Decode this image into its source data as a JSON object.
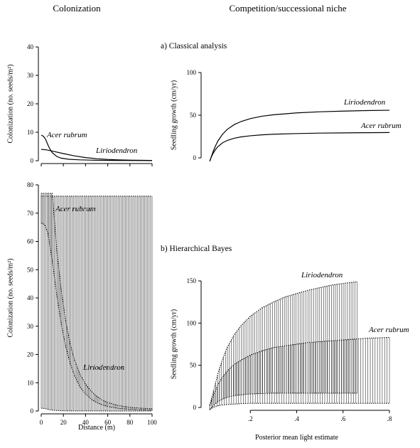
{
  "headings": {
    "left": "Colonization",
    "right": "Competition/successional niche"
  },
  "chart_data": [
    {
      "id": "colonization-classical",
      "type": "line",
      "title": "",
      "xlabel": "",
      "ylabel": "Colonization (no. seeds/m²)",
      "xlim": [
        0,
        100
      ],
      "ylim": [
        0,
        40
      ],
      "x_ticks": [
        0,
        20,
        40,
        60,
        80,
        100
      ],
      "y_ticks": [
        0,
        10,
        20,
        30,
        40
      ],
      "grid": false,
      "series": [
        {
          "name": "Acer rubrum",
          "color": "#000000",
          "x": [
            0,
            2,
            4,
            6,
            8,
            10,
            14,
            18,
            25,
            35,
            50,
            70,
            100
          ],
          "y": [
            9.0,
            8.6,
            7.5,
            5.6,
            4.0,
            2.8,
            1.5,
            0.9,
            0.5,
            0.3,
            0.15,
            0.1,
            0.05
          ]
        },
        {
          "name": "Liriodendron",
          "color": "#000000",
          "x": [
            0,
            5,
            10,
            20,
            30,
            40,
            50,
            60,
            70,
            80,
            100
          ],
          "y": [
            4.0,
            3.8,
            3.4,
            2.5,
            1.7,
            1.1,
            0.7,
            0.45,
            0.3,
            0.2,
            0.1
          ]
        }
      ]
    },
    {
      "id": "colonization-bayes",
      "type": "line",
      "title": "",
      "xlabel": "Distance (m)",
      "ylabel": "Colonization (no. seeds/m²)",
      "xlim": [
        0,
        100
      ],
      "ylim": [
        0,
        80
      ],
      "x_ticks": [
        0,
        20,
        40,
        60,
        80,
        100
      ],
      "y_ticks": [
        0,
        10,
        20,
        30,
        40,
        50,
        60,
        70,
        80
      ],
      "grid": false,
      "series": [
        {
          "name": "Acer rubrum",
          "color": "#000000",
          "x": [
            0,
            2,
            4,
            6,
            8,
            10,
            14,
            18,
            25,
            35,
            50,
            70,
            100
          ],
          "y": [
            1.0,
            0.9,
            0.8,
            0.6,
            0.4,
            0.3,
            0.2,
            0.1,
            0.05,
            0.03,
            0.02,
            0.01,
            0
          ],
          "upper": [
            76,
            76,
            76,
            76,
            76,
            76,
            76,
            76,
            76,
            76,
            76,
            76,
            76
          ]
        },
        {
          "name": "Liriodendron",
          "color": "#000000",
          "x": [
            0,
            3,
            6,
            10,
            14,
            18,
            22,
            26,
            30,
            35,
            40,
            45,
            50,
            55,
            60,
            70,
            80,
            90,
            100
          ],
          "y": [
            66.5,
            66,
            63,
            53,
            41,
            31,
            23,
            17,
            12.5,
            8.5,
            6.0,
            4.2,
            3.0,
            2.2,
            1.6,
            0.9,
            0.6,
            0.4,
            0.3
          ],
          "upper": [
            77,
            77,
            77,
            77,
            57,
            43,
            32,
            24,
            18,
            13,
            9.5,
            7.0,
            5.2,
            3.9,
            3.0,
            1.9,
            1.3,
            1.0,
            0.8
          ]
        }
      ]
    },
    {
      "id": "growth-classical",
      "type": "line",
      "title": "a) Classical analysis",
      "xlabel": "",
      "ylabel": "Seedling growth (cm/yr)",
      "xlim": [
        0,
        0.8
      ],
      "ylim": [
        0,
        100
      ],
      "y_ticks": [
        0,
        50,
        100
      ],
      "grid": false,
      "series": [
        {
          "name": "Liriodendron",
          "color": "#000000",
          "x": [
            0.025,
            0.03,
            0.04,
            0.05,
            0.06,
            0.08,
            0.1,
            0.13,
            0.16,
            0.2,
            0.25,
            0.3,
            0.4,
            0.5,
            0.6,
            0.7,
            0.8
          ],
          "y": [
            -4,
            0,
            7.7,
            14.2,
            19.7,
            27.6,
            33.3,
            38.9,
            42.6,
            46.0,
            48.8,
            50.5,
            52.7,
            54.0,
            54.8,
            55.4,
            55.8
          ]
        },
        {
          "name": "Acer rubrum",
          "color": "#000000",
          "x": [
            0.025,
            0.03,
            0.04,
            0.05,
            0.06,
            0.08,
            0.1,
            0.13,
            0.16,
            0.2,
            0.25,
            0.3,
            0.4,
            0.5,
            0.6,
            0.7,
            0.8
          ],
          "y": [
            -4,
            0,
            5.6,
            9.8,
            13.1,
            17.6,
            20.4,
            23.0,
            24.6,
            25.9,
            27.0,
            27.7,
            28.5,
            29.0,
            29.3,
            29.5,
            29.7
          ]
        }
      ]
    },
    {
      "id": "growth-bayes",
      "type": "line",
      "title": "b) Hierarchical Bayes",
      "xlabel": "Posterior mean light estimate",
      "ylabel": "Seedling growth (cm/yr)",
      "xlim": [
        0,
        0.8
      ],
      "ylim": [
        0,
        150
      ],
      "x_ticks": [
        0.2,
        0.4,
        0.6,
        0.8
      ],
      "y_ticks": [
        0,
        50,
        100,
        150
      ],
      "grid": false,
      "series": [
        {
          "name": "Liriodendron",
          "color": "#000000",
          "x": [
            0.025,
            0.04,
            0.06,
            0.08,
            0.1,
            0.13,
            0.16,
            0.2,
            0.25,
            0.3,
            0.35,
            0.4,
            0.45,
            0.5,
            0.55,
            0.6,
            0.66
          ],
          "y": [
            -3,
            2,
            7,
            10,
            12,
            14,
            15,
            16,
            16.5,
            17,
            17,
            17,
            17,
            17,
            17,
            17,
            17
          ],
          "upper": [
            3,
            18,
            40,
            57,
            71,
            86,
            97,
            108,
            118,
            125,
            131,
            135,
            139,
            142,
            145,
            147,
            149
          ]
        },
        {
          "name": "Acer rubrum",
          "color": "#000000",
          "x": [
            0.025,
            0.04,
            0.06,
            0.08,
            0.1,
            0.13,
            0.16,
            0.2,
            0.25,
            0.3,
            0.35,
            0.4,
            0.45,
            0.5,
            0.55,
            0.6,
            0.65,
            0.7,
            0.75,
            0.8
          ],
          "y": [
            -2,
            0,
            2,
            3,
            3.5,
            4,
            4.5,
            5,
            5,
            5,
            5,
            5,
            5,
            5,
            5,
            5,
            5,
            5,
            5,
            5
          ],
          "upper": [
            2,
            14,
            27,
            36,
            43,
            51,
            56,
            62,
            67,
            71,
            73,
            75,
            77,
            78,
            79,
            80,
            81,
            82,
            82.5,
            83
          ]
        }
      ]
    }
  ]
}
